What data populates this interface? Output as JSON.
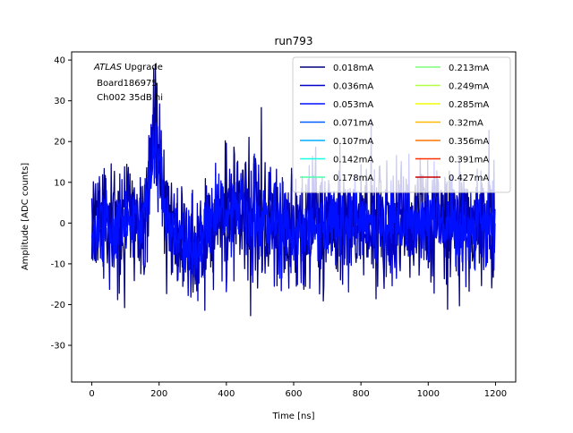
{
  "chart_data": {
    "type": "line",
    "title": "run793",
    "xlabel": "Time [ns]",
    "ylabel": "Amplitude [ADC counts]",
    "xlim": [
      -60,
      1260
    ],
    "ylim": [
      -39,
      42
    ],
    "xticks": [
      0,
      200,
      400,
      600,
      800,
      1000,
      1200
    ],
    "yticks": [
      -30,
      -20,
      -10,
      0,
      10,
      20,
      30,
      40
    ],
    "grid": false,
    "legend_placement": "top-right",
    "legend_columns": 2,
    "annotation": {
      "italic": "ATLAS",
      "line1_rest": " Upgrade",
      "line2": " Board186975",
      "line3": " Ch002 35dB hi"
    },
    "x_range": [
      0,
      1200
    ],
    "series": [
      {
        "name": "0.018mA",
        "color": "#00007f",
        "amplitude": 1.0
      },
      {
        "name": "0.036mA",
        "color": "#0000c8",
        "amplitude": 0.8
      },
      {
        "name": "0.053mA",
        "color": "#0010ff",
        "amplitude": 0.6
      },
      {
        "name": "0.071mA",
        "color": "#0060ff",
        "amplitude": 0.0
      },
      {
        "name": "0.107mA",
        "color": "#00b0ff",
        "amplitude": 0.0
      },
      {
        "name": "0.142mA",
        "color": "#16ffe1",
        "amplitude": 0.0
      },
      {
        "name": "0.178mA",
        "color": "#4dffaa",
        "amplitude": 0.0
      },
      {
        "name": "0.213mA",
        "color": "#7dff7a",
        "amplitude": 0.0
      },
      {
        "name": "0.249mA",
        "color": "#b4ff43",
        "amplitude": 0.0
      },
      {
        "name": "0.285mA",
        "color": "#f1fc06",
        "amplitude": 0.0
      },
      {
        "name": "0.32mA",
        "color": "#ffb900",
        "amplitude": 0.0
      },
      {
        "name": "0.356mA",
        "color": "#ff7700",
        "amplitude": 0.0
      },
      {
        "name": "0.391mA",
        "color": "#ff3000",
        "amplitude": 0.0
      },
      {
        "name": "0.427mA",
        "color": "#c40000",
        "amplitude": 0.0
      }
    ]
  }
}
